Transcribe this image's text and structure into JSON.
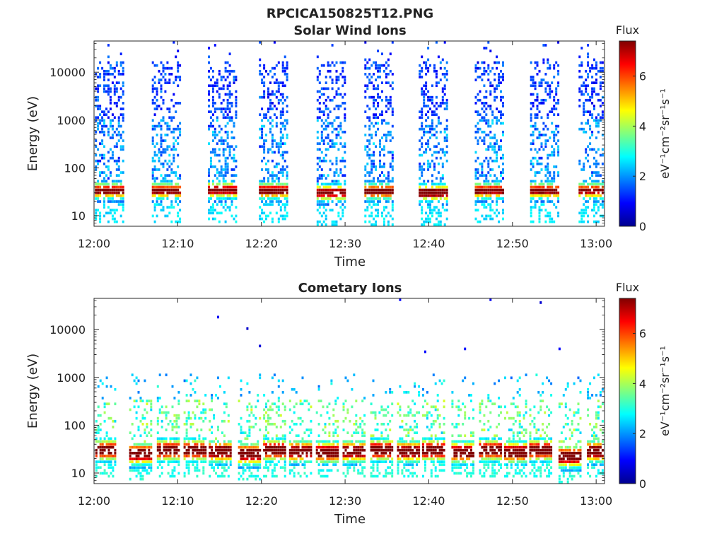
{
  "figure": {
    "title": "RPCICA150825T12.PNG"
  },
  "colors": {
    "colormap": [
      "#00008f",
      "#0000ff",
      "#0080ff",
      "#00ffff",
      "#80ff80",
      "#ffff00",
      "#ff8000",
      "#ff0000",
      "#800000"
    ],
    "axis": "#262626",
    "background": "#ffffff"
  },
  "chart_data": [
    {
      "type": "heatmap",
      "title": "Solar Wind Ions",
      "xlabel": "Time",
      "ylabel": "Energy (eV)",
      "x_ticks": [
        "12:00",
        "12:10",
        "12:20",
        "12:30",
        "12:40",
        "12:50",
        "13:00"
      ],
      "x_range_minutes": [
        0,
        61
      ],
      "y_ticks": [
        "10",
        "100",
        "1000",
        "10000"
      ],
      "y_scale": "log",
      "y_range": [
        6,
        45000
      ],
      "colorbar": {
        "label": "Flux",
        "unit": "eV⁻¹cm⁻²sr⁻¹s⁻¹",
        "ticks": [
          "0",
          "2",
          "4",
          "6"
        ],
        "range": [
          0,
          7.4
        ]
      },
      "sweeps": [
        {
          "center_min": 1.8,
          "peak_energy_eV": 33,
          "peak_flux": 6.3
        },
        {
          "center_min": 8.6,
          "peak_energy_eV": 33,
          "peak_flux": 6.2
        },
        {
          "center_min": 15.3,
          "peak_energy_eV": 34,
          "peak_flux": 6.3
        },
        {
          "center_min": 21.4,
          "peak_energy_eV": 33,
          "peak_flux": 6.6
        },
        {
          "center_min": 28.3,
          "peak_energy_eV": 30,
          "peak_flux": 6.5
        },
        {
          "center_min": 34.0,
          "peak_energy_eV": 32,
          "peak_flux": 6.5
        },
        {
          "center_min": 40.5,
          "peak_energy_eV": 30,
          "peak_flux": 6.9
        },
        {
          "center_min": 47.2,
          "peak_energy_eV": 33,
          "peak_flux": 6.2
        },
        {
          "center_min": 53.8,
          "peak_energy_eV": 33,
          "peak_flux": 6.2
        },
        {
          "center_min": 59.6,
          "peak_energy_eV": 33,
          "peak_flux": 6.0
        }
      ]
    },
    {
      "type": "heatmap",
      "title": "Cometary Ions",
      "xlabel": "Time",
      "ylabel": "Energy (eV)",
      "x_ticks": [
        "12:00",
        "12:10",
        "12:20",
        "12:30",
        "12:40",
        "12:50",
        "13:00"
      ],
      "x_range_minutes": [
        0,
        61
      ],
      "y_ticks": [
        "10",
        "100",
        "1000",
        "10000"
      ],
      "y_scale": "log",
      "y_range": [
        6,
        45000
      ],
      "colorbar": {
        "label": "Flux",
        "unit": "eV⁻¹cm⁻²sr⁻¹s⁻¹",
        "ticks": [
          "0",
          "2",
          "4",
          "6"
        ],
        "range": [
          0,
          7.4
        ]
      },
      "sweeps": [
        {
          "center_min": 1.2,
          "peak_energy_eV": 30,
          "peak_flux": 6.8
        },
        {
          "center_min": 5.5,
          "peak_energy_eV": 25,
          "peak_flux": 7.2
        },
        {
          "center_min": 8.8,
          "peak_energy_eV": 30,
          "peak_flux": 6.9
        },
        {
          "center_min": 12.0,
          "peak_energy_eV": 30,
          "peak_flux": 7.0
        },
        {
          "center_min": 15.0,
          "peak_energy_eV": 28,
          "peak_flux": 7.1
        },
        {
          "center_min": 18.5,
          "peak_energy_eV": 25,
          "peak_flux": 7.2
        },
        {
          "center_min": 21.5,
          "peak_energy_eV": 30,
          "peak_flux": 7.1
        },
        {
          "center_min": 24.6,
          "peak_energy_eV": 28,
          "peak_flux": 7.0
        },
        {
          "center_min": 27.8,
          "peak_energy_eV": 27,
          "peak_flux": 7.1
        },
        {
          "center_min": 31.0,
          "peak_energy_eV": 28,
          "peak_flux": 7.0
        },
        {
          "center_min": 34.3,
          "peak_energy_eV": 30,
          "peak_flux": 7.2
        },
        {
          "center_min": 37.5,
          "peak_energy_eV": 28,
          "peak_flux": 6.9
        },
        {
          "center_min": 40.5,
          "peak_energy_eV": 30,
          "peak_flux": 7.3
        },
        {
          "center_min": 44.0,
          "peak_energy_eV": 27,
          "peak_flux": 7.0
        },
        {
          "center_min": 47.3,
          "peak_energy_eV": 30,
          "peak_flux": 7.0
        },
        {
          "center_min": 50.3,
          "peak_energy_eV": 27,
          "peak_flux": 7.1
        },
        {
          "center_min": 53.3,
          "peak_energy_eV": 30,
          "peak_flux": 7.0
        },
        {
          "center_min": 56.8,
          "peak_energy_eV": 22,
          "peak_flux": 7.2
        },
        {
          "center_min": 60.2,
          "peak_energy_eV": 28,
          "peak_flux": 7.0
        }
      ]
    }
  ]
}
